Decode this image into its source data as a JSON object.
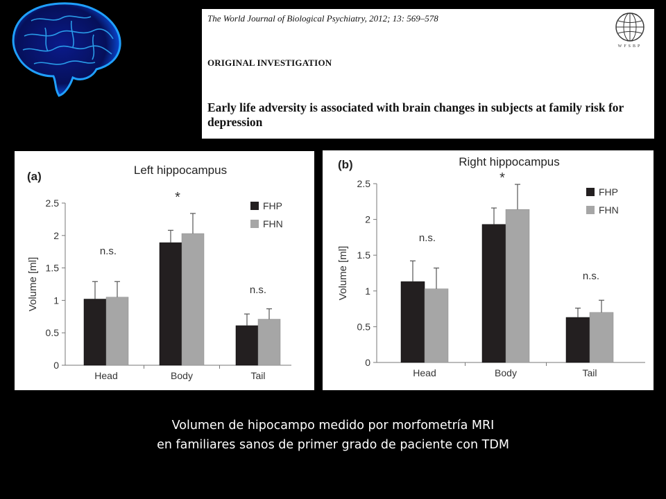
{
  "journal": {
    "citation": "The World Journal of Biological Psychiatry, 2012; 13: 569–578",
    "section": "ORIGINAL INVESTIGATION",
    "article_title": "Early life adversity is associated with brain changes in subjects at family risk for depression",
    "logo_text": "WFSBP"
  },
  "caption": {
    "line1": "Volumen de hipocampo medido por morfometría MRI",
    "line2": "en familiares sanos de primer grado de paciente con TDM"
  },
  "colors": {
    "fhp": "#231f20",
    "fhn": "#a6a6a6",
    "background": "#000000"
  },
  "chart_data": [
    {
      "type": "bar",
      "panel_label": "(a)",
      "title": "Left hippocampus",
      "ylabel": "Volume [ml]",
      "ylim": [
        0,
        2.5
      ],
      "yticks": [
        "0",
        "0.5",
        "1",
        "1.5",
        "2",
        "2.5"
      ],
      "categories": [
        "Head",
        "Body",
        "Tail"
      ],
      "series": [
        {
          "name": "FHP",
          "values": [
            1.02,
            1.89,
            0.61
          ],
          "errors": [
            0.27,
            0.19,
            0.18
          ]
        },
        {
          "name": "FHN",
          "values": [
            1.05,
            2.03,
            0.71
          ],
          "errors": [
            0.24,
            0.31,
            0.16
          ]
        }
      ],
      "annotations": [
        "n.s.",
        "*",
        "n.s."
      ],
      "legend": "top-right"
    },
    {
      "type": "bar",
      "panel_label": "(b)",
      "title": "Right hippocampus",
      "ylabel": "Volume [ml]",
      "ylim": [
        0,
        2.5
      ],
      "yticks": [
        "0",
        "0.5",
        "1",
        "1.5",
        "2",
        "2.5"
      ],
      "categories": [
        "Head",
        "Body",
        "Tail"
      ],
      "series": [
        {
          "name": "FHP",
          "values": [
            1.13,
            1.93,
            0.63
          ],
          "errors": [
            0.29,
            0.23,
            0.13
          ]
        },
        {
          "name": "FHN",
          "values": [
            1.03,
            2.14,
            0.7
          ],
          "errors": [
            0.29,
            0.35,
            0.17
          ]
        }
      ],
      "annotations": [
        "n.s.",
        "*",
        "n.s."
      ],
      "legend": "top-right"
    }
  ]
}
